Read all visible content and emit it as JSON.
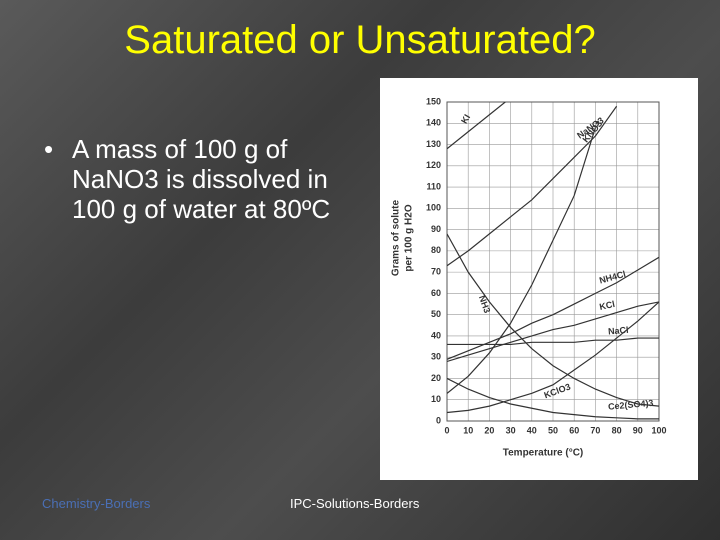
{
  "title": "Saturated or Unsaturated?",
  "bullet": "A mass of 100 g of NaNO3 is dissolved in 100 g of water at 80ºC",
  "footer": [
    "Chemistry-Borders",
    "IPC-Solutions-Borders"
  ],
  "chart_data": {
    "type": "line",
    "y_label": [
      "Grams of solute",
      "per 100 g H2O"
    ],
    "x_label": "Temperature (°C)",
    "x": [
      0,
      10,
      20,
      30,
      40,
      50,
      60,
      70,
      80,
      90,
      100
    ],
    "xlim": [
      0,
      100
    ],
    "xticks": [
      0,
      10,
      20,
      30,
      40,
      50,
      60,
      70,
      80,
      90,
      100
    ],
    "ylim": [
      0,
      150
    ],
    "yticks": [
      0,
      10,
      20,
      30,
      40,
      50,
      60,
      70,
      80,
      90,
      100,
      110,
      120,
      130,
      140,
      150
    ],
    "grid": true,
    "color": "#333333",
    "series": [
      {
        "name": "KI",
        "values": [
          128,
          136,
          144,
          152,
          null,
          null,
          null,
          null,
          null,
          null,
          null
        ]
      },
      {
        "name": "NaNO3",
        "values": [
          73,
          80,
          88,
          96,
          104,
          114,
          124,
          134,
          148,
          null,
          null
        ]
      },
      {
        "name": "KNO3",
        "values": [
          13,
          21,
          32,
          46,
          64,
          85,
          106,
          138,
          null,
          null,
          null
        ]
      },
      {
        "name": "NH3",
        "values": [
          88,
          70,
          56,
          44,
          34,
          26,
          20,
          15,
          11,
          8,
          7
        ]
      },
      {
        "name": "NH4Cl",
        "values": [
          29,
          33,
          37,
          41,
          46,
          50,
          55,
          60,
          65,
          71,
          77
        ]
      },
      {
        "name": "KCl",
        "values": [
          28,
          31,
          34,
          37,
          40,
          43,
          45,
          48,
          51,
          54,
          56
        ]
      },
      {
        "name": "NaCl",
        "values": [
          36,
          36,
          36,
          36,
          37,
          37,
          37,
          38,
          38,
          39,
          39
        ]
      },
      {
        "name": "KClO3",
        "values": [
          4,
          5,
          7,
          10,
          13,
          17,
          24,
          31,
          39,
          47,
          56
        ]
      },
      {
        "name": "Ce2(SO4)3",
        "values": [
          20,
          15,
          11,
          8,
          6,
          4,
          3,
          2,
          1.5,
          1,
          1
        ]
      }
    ]
  }
}
